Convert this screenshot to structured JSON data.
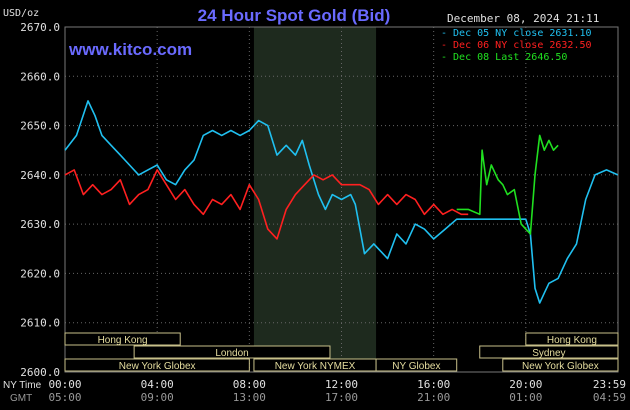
{
  "header": {
    "title": "24 Hour Spot Gold (Bid)",
    "timestamp": "December 08, 2024 21:11",
    "unit": "USD/oz",
    "watermark": "www.kitco.com"
  },
  "legend": {
    "position": "top-right",
    "items": [
      {
        "text": "Dec 05 NY close 2631.10",
        "color": "#20C0F0"
      },
      {
        "text": "Dec 06 NY close 2632.50",
        "color": "#FF2020"
      },
      {
        "text": "Dec 08 Last 2646.50",
        "color": "#20E020"
      }
    ]
  },
  "axes": {
    "y_ticks": [
      "2670.0",
      "2660.0",
      "2650.0",
      "2640.0",
      "2630.0",
      "2620.0",
      "2610.0",
      "2600.0"
    ],
    "ny_label": "NY Time",
    "gmt_label": "GMT",
    "ny_ticks": [
      "00:00",
      "04:00",
      "08:00",
      "12:00",
      "16:00",
      "20:00",
      "23:59"
    ],
    "gmt_ticks": [
      "05:00",
      "09:00",
      "13:00",
      "17:00",
      "21:00",
      "01:00",
      "04:59"
    ]
  },
  "sessions": [
    {
      "label": "Hong Kong",
      "row": 0,
      "from": 0,
      "to": 5.0
    },
    {
      "label": "Hong Kong",
      "row": 0,
      "from": 20.0,
      "to": 24.0
    },
    {
      "label": "London",
      "row": 1,
      "from": 3.0,
      "to": 11.5
    },
    {
      "label": "Sydney",
      "row": 1,
      "from": 18.0,
      "to": 24.0
    },
    {
      "label": "New York Globex",
      "row": 2,
      "from": 0,
      "to": 8.0
    },
    {
      "label": "New York NYMEX",
      "row": 2,
      "from": 8.2,
      "to": 13.5
    },
    {
      "label": "NY Globex",
      "row": 2,
      "from": 13.5,
      "to": 17.0
    },
    {
      "label": "New York Globex",
      "row": 2,
      "from": 19.0,
      "to": 24.0
    }
  ],
  "chart_data": {
    "type": "line",
    "title": "24 Hour Spot Gold (Bid)",
    "ylabel": "USD/oz",
    "xlabel": "",
    "xlim": [
      0,
      24
    ],
    "ylim": [
      2600,
      2670
    ],
    "grid": true,
    "shaded_region": [
      8.2,
      13.5
    ],
    "series": [
      {
        "name": "Dec 05 NY close 2631.10",
        "color": "#20C0F0",
        "x": [
          0,
          0.5,
          1.0,
          1.3,
          1.6,
          2.0,
          2.4,
          2.8,
          3.2,
          3.6,
          4.0,
          4.4,
          4.8,
          5.2,
          5.6,
          6.0,
          6.4,
          6.8,
          7.2,
          7.6,
          8.0,
          8.4,
          8.8,
          9.2,
          9.6,
          10.0,
          10.3,
          10.6,
          11.0,
          11.3,
          11.6,
          12.0,
          12.4,
          12.6,
          13.0,
          13.4,
          13.6,
          14.0,
          14.4,
          14.8,
          15.2,
          15.6,
          16.0,
          16.5,
          17.0,
          17.5,
          18.0,
          18.5,
          19.0,
          19.5,
          20.0,
          20.2,
          20.4,
          20.6,
          20.8,
          21.0,
          21.4,
          21.8,
          22.2,
          22.6,
          23.0,
          23.5,
          23.99
        ],
        "y": [
          2645,
          2648,
          2655,
          2652,
          2648,
          2646,
          2644,
          2642,
          2640,
          2641,
          2642,
          2639,
          2638,
          2641,
          2643,
          2648,
          2649,
          2648,
          2649,
          2648,
          2649,
          2651,
          2650,
          2644,
          2646,
          2644,
          2647,
          2642,
          2636,
          2633,
          2636,
          2635,
          2636,
          2634,
          2624,
          2626,
          2625,
          2623,
          2628,
          2626,
          2630,
          2629,
          2627,
          2629,
          2631,
          2631,
          2631,
          2631,
          2631,
          2631,
          2631,
          2628,
          2617,
          2614,
          2616,
          2618,
          2619,
          2623,
          2626,
          2635,
          2640,
          2641,
          2640
        ]
      },
      {
        "name": "Dec 06 NY close 2632.50",
        "color": "#FF2020",
        "x": [
          0,
          0.4,
          0.8,
          1.2,
          1.6,
          2.0,
          2.4,
          2.8,
          3.2,
          3.6,
          4.0,
          4.4,
          4.8,
          5.2,
          5.6,
          6.0,
          6.4,
          6.8,
          7.2,
          7.6,
          8.0,
          8.4,
          8.8,
          9.2,
          9.6,
          10.0,
          10.4,
          10.8,
          11.2,
          11.6,
          12.0,
          12.4,
          12.8,
          13.2,
          13.6,
          14.0,
          14.4,
          14.8,
          15.2,
          15.6,
          16.0,
          16.4,
          16.8,
          17.2,
          17.5
        ],
        "y": [
          2640,
          2641,
          2636,
          2638,
          2636,
          2637,
          2639,
          2634,
          2636,
          2637,
          2641,
          2638,
          2635,
          2637,
          2634,
          2632,
          2635,
          2634,
          2636,
          2633,
          2638,
          2635,
          2629,
          2627,
          2633,
          2636,
          2638,
          2640,
          2639,
          2640,
          2638,
          2638,
          2638,
          2637,
          2634,
          2636,
          2634,
          2636,
          2635,
          2632,
          2634,
          2632,
          2633,
          2632,
          2632
        ]
      },
      {
        "name": "Dec 08 Last 2646.50",
        "color": "#20E020",
        "x": [
          17.0,
          17.5,
          18.0,
          18.1,
          18.3,
          18.5,
          18.8,
          19.0,
          19.2,
          19.5,
          19.8,
          20.0,
          20.2,
          20.4,
          20.6,
          20.8,
          21.0,
          21.2,
          21.4
        ],
        "y": [
          2633,
          2633,
          2632,
          2645,
          2638,
          2642,
          2639,
          2638,
          2636,
          2637,
          2630,
          2629,
          2628,
          2640,
          2648,
          2645,
          2647,
          2645,
          2646
        ]
      }
    ]
  }
}
